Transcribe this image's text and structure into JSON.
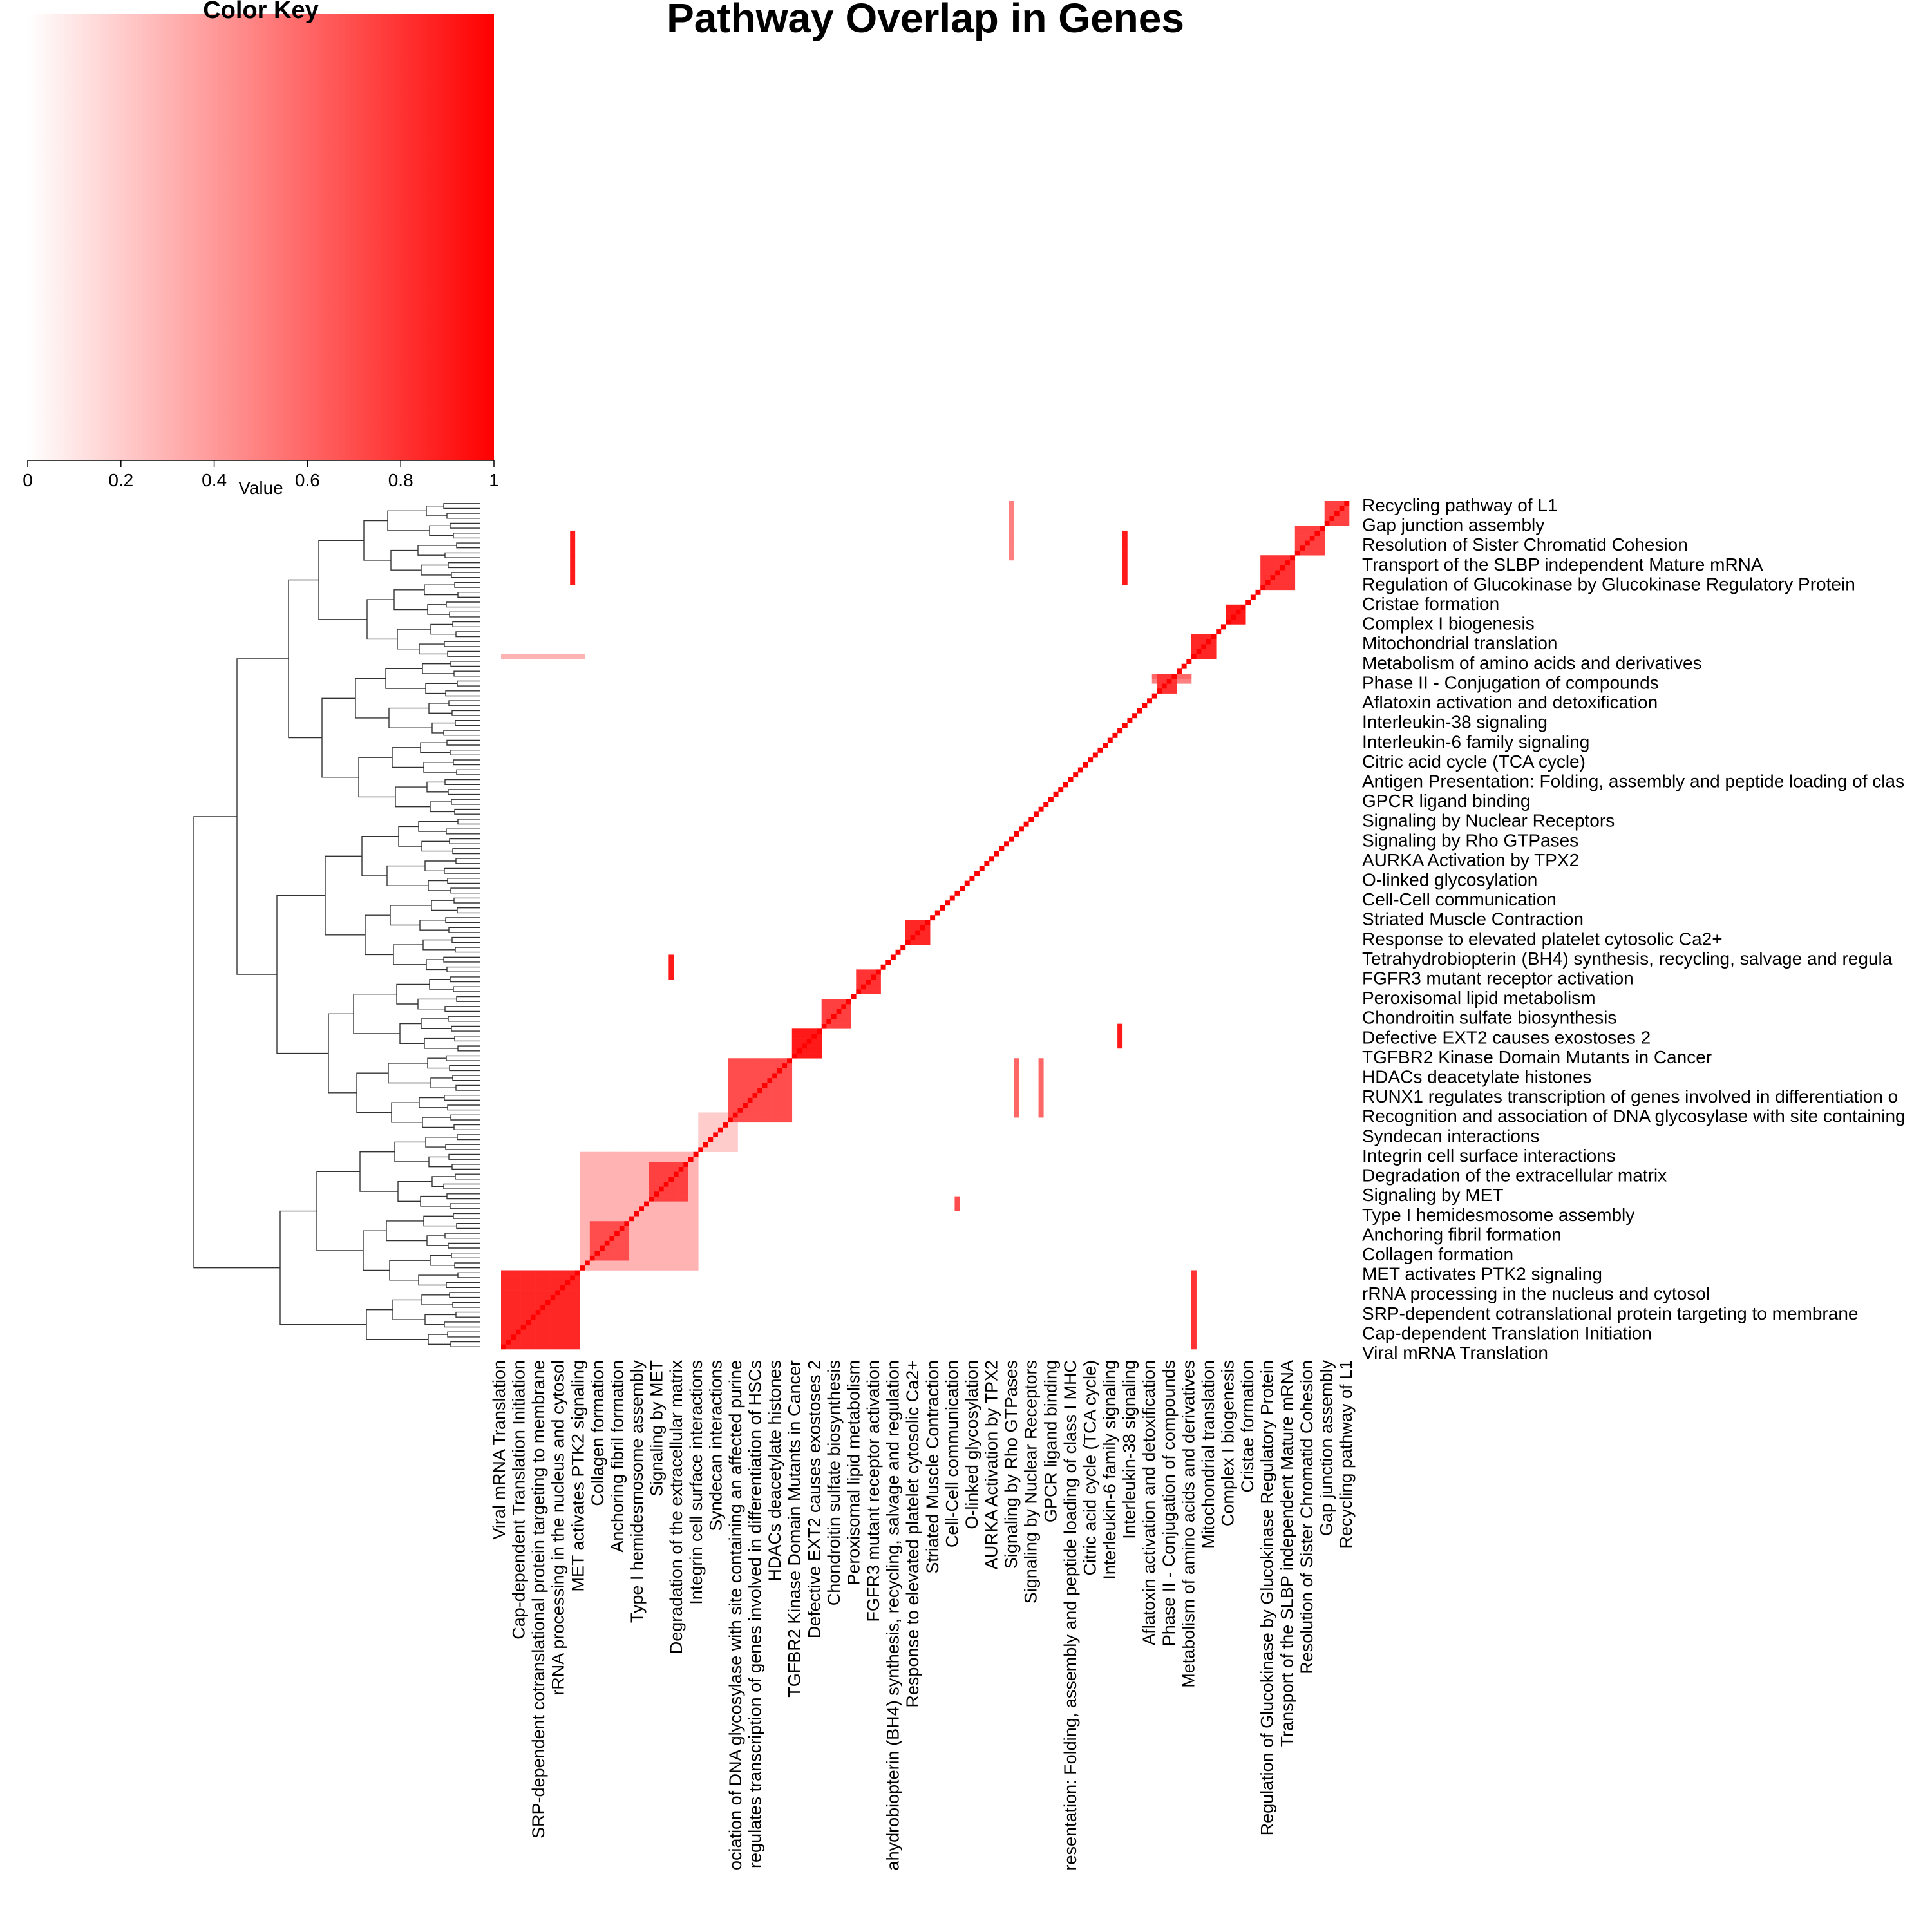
{
  "chart_data": {
    "type": "heatmap",
    "title": "Pathway Overlap in Genes",
    "color_key": {
      "title": "Color Key",
      "xlabel": "Value",
      "ticks": [
        "0",
        "0.2",
        "0.4",
        "0.6",
        "0.8",
        "1"
      ],
      "range": [
        0,
        1
      ],
      "low_color": "#ffffff",
      "high_color": "#ff0000"
    },
    "row_labels": [
      "Recycling pathway of L1",
      "Gap junction assembly",
      "Resolution of Sister Chromatid Cohesion",
      "Transport of the SLBP independent Mature mRNA",
      "Regulation of Glucokinase by Glucokinase Regulatory Protein",
      "Cristae formation",
      "Complex I biogenesis",
      "Mitochondrial translation",
      "Metabolism of amino acids and derivatives",
      "Phase II - Conjugation of compounds",
      "Aflatoxin activation and detoxification",
      "Interleukin-38 signaling",
      "Interleukin-6 family signaling",
      "Citric acid cycle (TCA cycle)",
      "Antigen Presentation: Folding, assembly and peptide loading of clas",
      "GPCR ligand binding",
      "Signaling by Nuclear Receptors",
      "Signaling by Rho GTPases",
      "AURKA Activation by TPX2",
      "O-linked glycosylation",
      "Cell-Cell communication",
      "Striated Muscle Contraction",
      "Response to elevated platelet cytosolic Ca2+",
      "Tetrahydrobiopterin (BH4) synthesis, recycling, salvage and regula",
      "FGFR3 mutant receptor activation",
      "Peroxisomal lipid metabolism",
      "Chondroitin sulfate biosynthesis",
      "Defective EXT2 causes exostoses 2",
      "TGFBR2 Kinase Domain Mutants in Cancer",
      "HDACs deacetylate histones",
      "RUNX1 regulates transcription of genes involved in differentiation o",
      "Recognition and association of DNA glycosylase with site containing",
      "Syndecan interactions",
      "Integrin cell surface interactions",
      "Degradation of the extracellular matrix",
      "Signaling by MET",
      "Type I hemidesmosome assembly",
      "Anchoring fibril formation",
      "Collagen formation",
      "MET activates PTK2 signaling",
      "rRNA processing in the nucleus and cytosol",
      "SRP-dependent cotranslational protein targeting to membrane",
      "Cap-dependent Translation Initiation",
      "Viral mRNA Translation"
    ],
    "col_labels": [
      "Viral mRNA Translation",
      "Cap-dependent Translation Initiation",
      "SRP-dependent cotranslational protein targeting to membrane",
      "rRNA processing in the nucleus and cytosol",
      "MET activates PTK2 signaling",
      "Collagen formation",
      "Anchoring fibril formation",
      "Type I hemidesmosome assembly",
      "Signaling by MET",
      "Degradation of the extracellular matrix",
      "Integrin cell surface interactions",
      "Syndecan interactions",
      "ociation of DNA glycosylase with site containing an affected purine",
      "regulates transcription of genes involved in differentiation of HSCs",
      "HDACs deacetylate histones",
      "TGFBR2 Kinase Domain Mutants in Cancer",
      "Defective EXT2 causes exostoses 2",
      "Chondroitin sulfate biosynthesis",
      "Peroxisomal lipid metabolism",
      "FGFR3 mutant receptor activation",
      "ahydrobiopterin (BH4) synthesis, recycling, salvage and regulation",
      "Response to elevated platelet cytosolic Ca2+",
      "Striated Muscle Contraction",
      "Cell-Cell communication",
      "O-linked glycosylation",
      "AURKA Activation by TPX2",
      "Signaling by Rho GTPases",
      "Signaling by Nuclear Receptors",
      "GPCR ligand binding",
      "resentation: Folding, assembly and peptide loading of class I MHC",
      "Citric acid cycle (TCA cycle)",
      "Interleukin-6 family signaling",
      "Interleukin-38 signaling",
      "Aflatoxin activation and detoxification",
      "Phase II - Conjugation of compounds",
      "Metabolism of amino acids and derivatives",
      "Mitochondrial translation",
      "Complex I biogenesis",
      "Cristae formation",
      "Regulation of Glucokinase by Glucokinase Regulatory Protein",
      "Transport of the SLBP independent Mature mRNA",
      "Resolution of Sister Chromatid Cohesion",
      "Gap junction assembly",
      "Recycling pathway of L1"
    ],
    "n_cells": 172,
    "diagonal_value": 1,
    "blocks": [
      {
        "start": 0,
        "size": 16,
        "value": 0.85
      },
      {
        "start": 16,
        "size": 24,
        "value": 0.3
      },
      {
        "start": 18,
        "size": 8,
        "value": 0.7
      },
      {
        "start": 30,
        "size": 8,
        "value": 0.75
      },
      {
        "start": 40,
        "size": 8,
        "value": 0.2
      },
      {
        "start": 46,
        "size": 13,
        "value": 0.7
      },
      {
        "start": 59,
        "size": 6,
        "value": 0.9
      },
      {
        "start": 65,
        "size": 6,
        "value": 0.75
      },
      {
        "start": 72,
        "size": 5,
        "value": 0.8
      },
      {
        "start": 82,
        "size": 5,
        "value": 0.85
      },
      {
        "start": 133,
        "size": 4,
        "value": 0.8
      },
      {
        "start": 140,
        "size": 5,
        "value": 0.85
      },
      {
        "start": 147,
        "size": 4,
        "value": 0.9
      },
      {
        "start": 154,
        "size": 7,
        "value": 0.8
      },
      {
        "start": 161,
        "size": 6,
        "value": 0.75
      },
      {
        "start": 167,
        "size": 5,
        "value": 0.75
      }
    ],
    "stripes": [
      {
        "orientation": "vertical",
        "index": 140,
        "from": 0,
        "to": 16,
        "value": 0.8
      },
      {
        "orientation": "vertical",
        "index": 126,
        "from": 155,
        "to": 166,
        "value": 0.9
      },
      {
        "orientation": "vertical",
        "index": 14,
        "from": 155,
        "to": 166,
        "value": 0.9
      },
      {
        "orientation": "vertical",
        "index": 104,
        "from": 47,
        "to": 59,
        "value": 0.6
      },
      {
        "orientation": "vertical",
        "index": 109,
        "from": 47,
        "to": 59,
        "value": 0.6
      },
      {
        "orientation": "vertical",
        "index": 125,
        "from": 61,
        "to": 66,
        "value": 0.9
      },
      {
        "orientation": "vertical",
        "index": 103,
        "from": 160,
        "to": 172,
        "value": 0.5
      },
      {
        "orientation": "vertical",
        "index": 34,
        "from": 75,
        "to": 80,
        "value": 0.9
      },
      {
        "orientation": "vertical",
        "index": 92,
        "from": 28,
        "to": 31,
        "value": 0.7
      },
      {
        "orientation": "horizontal",
        "index": 140,
        "from": 0,
        "to": 17,
        "value": 0.3
      },
      {
        "orientation": "horizontal",
        "index": 136,
        "from": 132,
        "to": 140,
        "value": 0.6
      },
      {
        "orientation": "horizontal",
        "index": 135,
        "from": 132,
        "to": 140,
        "value": 0.5
      }
    ]
  }
}
